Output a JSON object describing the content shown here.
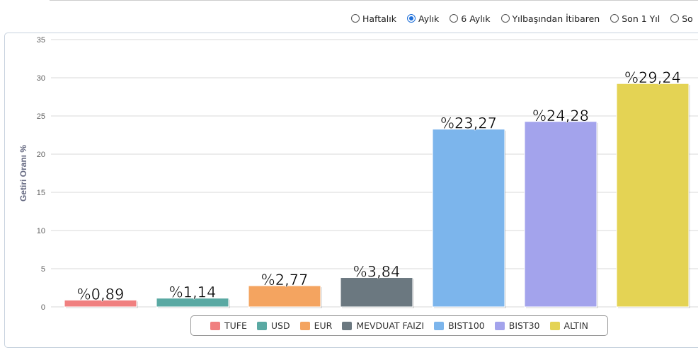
{
  "period_options": [
    {
      "label": "Haftalık",
      "checked": false
    },
    {
      "label": "Aylık",
      "checked": true
    },
    {
      "label": "6 Aylık",
      "checked": false
    },
    {
      "label": "Yılbaşından İtibaren",
      "checked": false
    },
    {
      "label": "Son 1 Yıl",
      "checked": false
    },
    {
      "label": "So",
      "checked": false
    }
  ],
  "chart_data": {
    "type": "bar",
    "ylabel": "Getiri Oranı %",
    "ylim": [
      0,
      35
    ],
    "yticks": [
      "0",
      "5",
      "10",
      "15",
      "20",
      "25",
      "30",
      "35"
    ],
    "grid": true,
    "legend_position": "bottom",
    "series": [
      {
        "name": "TUFE",
        "value": 0.89,
        "label": "%0,89",
        "color": "#f08080"
      },
      {
        "name": "USD",
        "value": 1.14,
        "label": "%1,14",
        "color": "#5aa9a3"
      },
      {
        "name": "EUR",
        "value": 2.77,
        "label": "%2,77",
        "color": "#f4a460"
      },
      {
        "name": "MEVDUAT FAIZI",
        "value": 3.84,
        "label": "%3,84",
        "color": "#6b7880"
      },
      {
        "name": "BIST100",
        "value": 23.27,
        "label": "%23,27",
        "color": "#7cb5ec"
      },
      {
        "name": "BIST30",
        "value": 24.28,
        "label": "%24,28",
        "color": "#a3a3ec"
      },
      {
        "name": "ALTIN",
        "value": 29.24,
        "label": "%29,24",
        "color": "#e4d354"
      }
    ]
  }
}
